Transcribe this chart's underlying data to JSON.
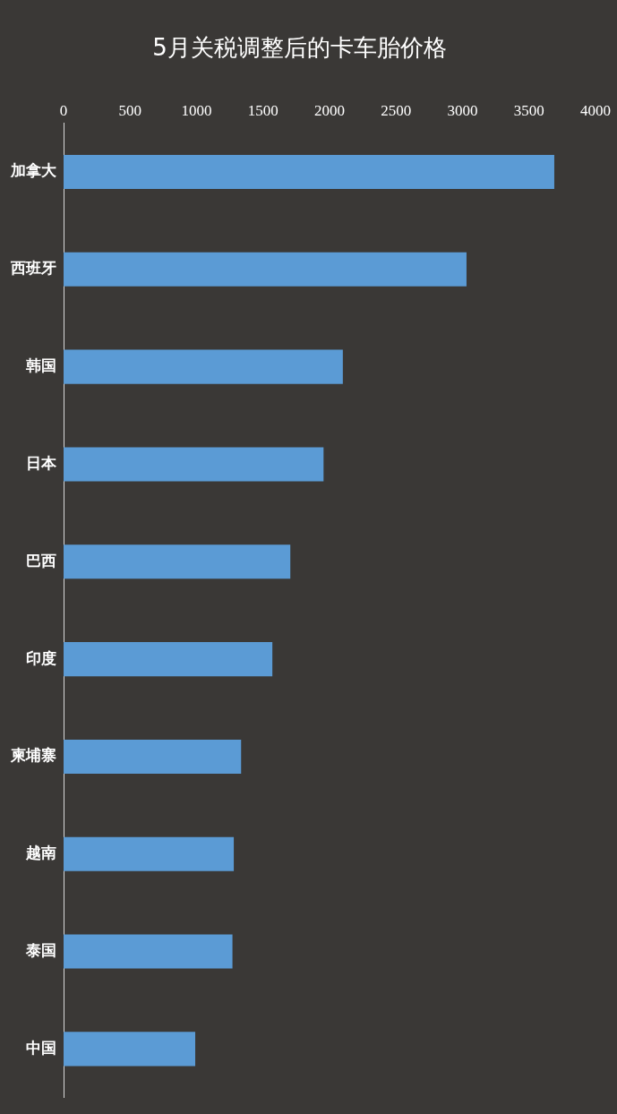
{
  "chart_data": {
    "type": "bar",
    "orientation": "horizontal",
    "title": "5月关税调整后的卡车胎价格",
    "categories": [
      "加拿大",
      "西班牙",
      "韩国",
      "日本",
      "巴西",
      "印度",
      "柬埔寨",
      "越南",
      "泰国",
      "中国"
    ],
    "values": [
      3690,
      3030,
      2100,
      1955,
      1705,
      1570,
      1335,
      1280,
      1270,
      990
    ],
    "color": "#5b9bd5",
    "xlim": [
      0,
      4000
    ],
    "xticks": [
      0,
      500,
      1000,
      1500,
      2000,
      2500,
      3000,
      3500,
      4000
    ],
    "grid": false,
    "legend": false
  }
}
